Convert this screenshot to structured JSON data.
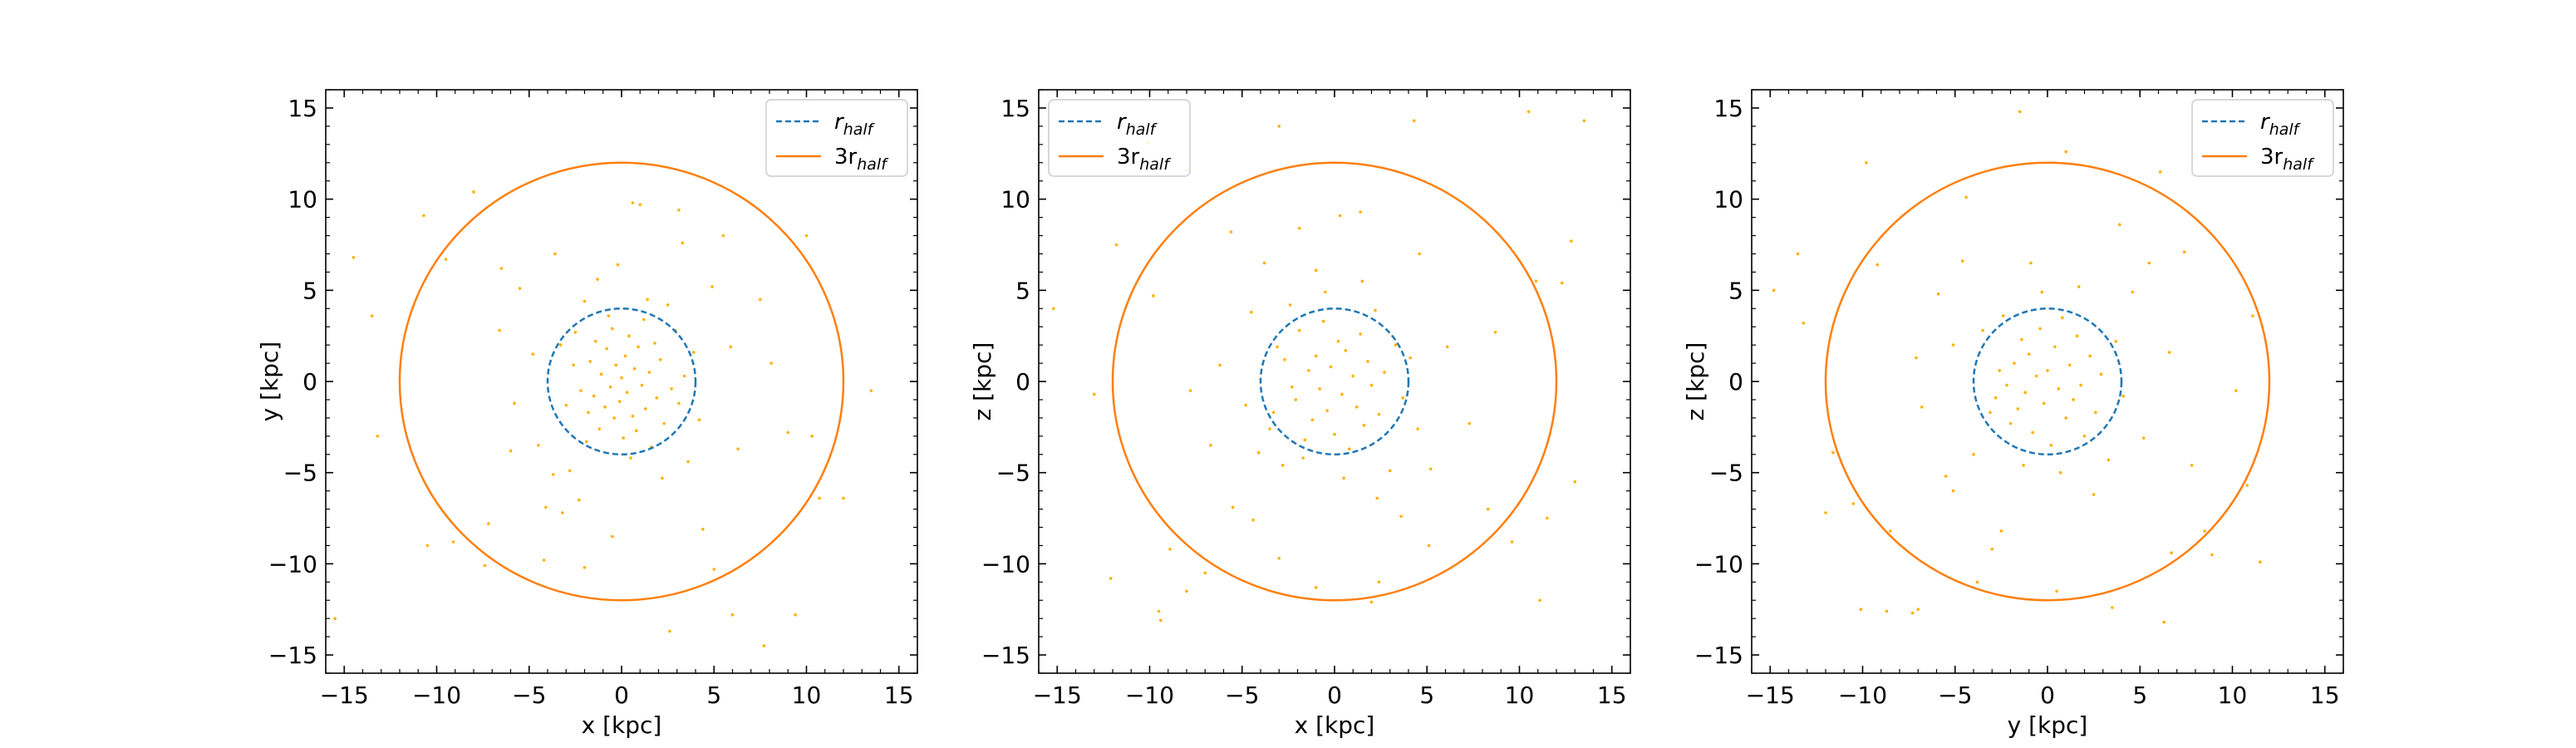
{
  "legend": {
    "r_half_label": {
      "base": "r",
      "sub": "half"
    },
    "three_r_half_label": {
      "base": "3r",
      "sub": "half"
    }
  },
  "colors": {
    "r_half": "#1f77b4",
    "three_r_half": "#ff7f0e",
    "points": "#ffb000"
  },
  "chart_data": [
    {
      "type": "scatter",
      "xlabel": "x [kpc]",
      "ylabel": "y [kpc]",
      "xlim": [
        -16,
        16
      ],
      "ylim": [
        -16,
        16
      ],
      "xticks": [
        -15,
        -10,
        -5,
        0,
        5,
        10,
        15
      ],
      "yticks": [
        -15,
        -10,
        -5,
        0,
        5,
        10,
        15
      ],
      "legend_loc": "top-right",
      "circles": [
        {
          "name_key": "r_half",
          "radius": 4.0,
          "style": "dashed"
        },
        {
          "name_key": "three_r_half",
          "radius": 12.0,
          "style": "solid"
        }
      ],
      "points": [
        [
          -14.5,
          6.8
        ],
        [
          -13.5,
          3.6
        ],
        [
          -13.2,
          -3.0
        ],
        [
          -10.7,
          9.1
        ],
        [
          -9.5,
          6.7
        ],
        [
          -9.1,
          -8.8
        ],
        [
          -8.0,
          10.4
        ],
        [
          -7.2,
          -7.8
        ],
        [
          -6.5,
          6.2
        ],
        [
          -6.0,
          -3.8
        ],
        [
          -5.5,
          5.1
        ],
        [
          -4.8,
          1.5
        ],
        [
          -4.5,
          -3.5
        ],
        [
          -3.7,
          -5.1
        ],
        [
          -3.6,
          7.0
        ],
        [
          -3.2,
          -7.2
        ],
        [
          -2.8,
          -4.9
        ],
        [
          -2.5,
          2.7
        ],
        [
          -2.3,
          -6.5
        ],
        [
          -2.0,
          4.4
        ],
        [
          -1.8,
          -1.7
        ],
        [
          -1.7,
          1.1
        ],
        [
          -1.5,
          -0.8
        ],
        [
          -1.4,
          2.2
        ],
        [
          -1.2,
          -2.6
        ],
        [
          -1.1,
          0.4
        ],
        [
          -0.9,
          -1.4
        ],
        [
          -0.8,
          1.8
        ],
        [
          -0.6,
          -0.3
        ],
        [
          -0.5,
          2.9
        ],
        [
          -0.4,
          -2.0
        ],
        [
          -0.3,
          0.9
        ],
        [
          -0.1,
          -1.1
        ],
        [
          0.0,
          0.2
        ],
        [
          0.1,
          -3.1
        ],
        [
          0.2,
          1.4
        ],
        [
          0.3,
          -0.6
        ],
        [
          0.4,
          2.5
        ],
        [
          0.6,
          -1.9
        ],
        [
          0.7,
          0.7
        ],
        [
          0.8,
          -2.7
        ],
        [
          0.9,
          1.9
        ],
        [
          1.1,
          -0.2
        ],
        [
          1.2,
          3.4
        ],
        [
          1.3,
          -1.5
        ],
        [
          1.5,
          0.5
        ],
        [
          1.6,
          -3.6
        ],
        [
          1.8,
          2.1
        ],
        [
          1.9,
          -0.9
        ],
        [
          2.1,
          1.2
        ],
        [
          2.3,
          -2.3
        ],
        [
          2.5,
          4.2
        ],
        [
          2.7,
          -0.4
        ],
        [
          2.9,
          2.8
        ],
        [
          3.1,
          -1.2
        ],
        [
          3.4,
          0.3
        ],
        [
          3.6,
          -4.4
        ],
        [
          3.9,
          1.6
        ],
        [
          4.2,
          -2.1
        ],
        [
          -2.2,
          -0.5
        ],
        [
          -2.6,
          0.9
        ],
        [
          -3.0,
          -1.3
        ],
        [
          -3.3,
          2.0
        ],
        [
          -1.9,
          -3.3
        ],
        [
          -0.7,
          3.6
        ],
        [
          0.5,
          -4.2
        ],
        [
          1.4,
          4.5
        ],
        [
          2.2,
          -5.3
        ],
        [
          -1.3,
          5.6
        ],
        [
          0.6,
          9.8
        ],
        [
          1.0,
          9.7
        ],
        [
          3.1,
          9.4
        ],
        [
          5.5,
          8.0
        ],
        [
          7.5,
          4.5
        ],
        [
          8.1,
          1.0
        ],
        [
          9.0,
          -2.8
        ],
        [
          10.3,
          -3.0
        ],
        [
          10.7,
          -6.4
        ],
        [
          12.0,
          -6.4
        ],
        [
          13.5,
          -0.5
        ],
        [
          10.0,
          8.0
        ],
        [
          6.0,
          -12.8
        ],
        [
          7.7,
          -14.5
        ],
        [
          9.4,
          -12.8
        ],
        [
          2.6,
          -13.7
        ],
        [
          -2.0,
          -10.2
        ],
        [
          -7.4,
          -10.1
        ],
        [
          -10.5,
          -9.0
        ],
        [
          -15.5,
          -13.0
        ],
        [
          -0.5,
          -8.5
        ],
        [
          4.4,
          -8.1
        ],
        [
          -4.2,
          -9.8
        ],
        [
          5.0,
          -10.3
        ],
        [
          3.3,
          7.6
        ],
        [
          -0.2,
          6.4
        ],
        [
          -5.8,
          -1.2
        ],
        [
          5.9,
          1.9
        ],
        [
          6.3,
          -3.7
        ],
        [
          -6.6,
          2.8
        ],
        [
          4.9,
          5.2
        ],
        [
          -4.1,
          -6.9
        ]
      ]
    },
    {
      "type": "scatter",
      "xlabel": "x [kpc]",
      "ylabel": "z [kpc]",
      "xlim": [
        -16,
        16
      ],
      "ylim": [
        -16,
        16
      ],
      "xticks": [
        -15,
        -10,
        -5,
        0,
        5,
        10,
        15
      ],
      "yticks": [
        -15,
        -10,
        -5,
        0,
        5,
        10,
        15
      ],
      "legend_loc": "top-left",
      "circles": [
        {
          "name_key": "r_half",
          "radius": 4.0,
          "style": "dashed"
        },
        {
          "name_key": "three_r_half",
          "radius": 12.0,
          "style": "solid"
        }
      ],
      "points": [
        [
          -15.2,
          4.0
        ],
        [
          -13.0,
          -0.7
        ],
        [
          -12.1,
          -10.8
        ],
        [
          -9.5,
          -12.6
        ],
        [
          -9.4,
          -13.1
        ],
        [
          -8.0,
          -11.5
        ],
        [
          -7.0,
          -10.5
        ],
        [
          -8.9,
          -9.2
        ],
        [
          -7.8,
          -0.5
        ],
        [
          -6.2,
          0.9
        ],
        [
          -4.8,
          -1.3
        ],
        [
          -4.5,
          3.8
        ],
        [
          -4.1,
          -3.9
        ],
        [
          -3.8,
          6.5
        ],
        [
          -3.5,
          -2.6
        ],
        [
          -3.1,
          1.9
        ],
        [
          -2.8,
          -4.6
        ],
        [
          -2.4,
          4.2
        ],
        [
          -2.1,
          -1.0
        ],
        [
          -1.9,
          2.8
        ],
        [
          -1.6,
          -3.2
        ],
        [
          -1.4,
          0.6
        ],
        [
          -1.2,
          -2.1
        ],
        [
          -1.0,
          1.4
        ],
        [
          -0.8,
          -0.4
        ],
        [
          -0.6,
          3.3
        ],
        [
          -0.4,
          -1.6
        ],
        [
          -0.2,
          0.8
        ],
        [
          0.0,
          -2.9
        ],
        [
          0.2,
          2.2
        ],
        [
          0.4,
          -0.7
        ],
        [
          0.6,
          1.7
        ],
        [
          0.8,
          -3.7
        ],
        [
          1.0,
          0.3
        ],
        [
          1.2,
          -1.4
        ],
        [
          1.4,
          2.6
        ],
        [
          1.6,
          -2.4
        ],
        [
          1.8,
          1.1
        ],
        [
          2.0,
          -0.2
        ],
        [
          2.2,
          3.9
        ],
        [
          2.4,
          -1.8
        ],
        [
          2.7,
          0.5
        ],
        [
          3.0,
          -4.9
        ],
        [
          3.3,
          2.0
        ],
        [
          3.7,
          -0.9
        ],
        [
          4.1,
          1.3
        ],
        [
          4.5,
          -2.6
        ],
        [
          -2.3,
          -0.3
        ],
        [
          -2.7,
          1.2
        ],
        [
          -3.3,
          -1.7
        ],
        [
          -1.7,
          -4.2
        ],
        [
          -0.5,
          4.9
        ],
        [
          0.5,
          -5.3
        ],
        [
          1.5,
          5.5
        ],
        [
          2.3,
          -6.4
        ],
        [
          -1.0,
          6.1
        ],
        [
          -5.5,
          -6.9
        ],
        [
          -3.0,
          -9.7
        ],
        [
          -1.0,
          -11.3
        ],
        [
          2.0,
          -12.1
        ],
        [
          2.4,
          -11.0
        ],
        [
          5.1,
          -9.0
        ],
        [
          8.3,
          -7.0
        ],
        [
          9.6,
          -8.8
        ],
        [
          11.5,
          -7.5
        ],
        [
          11.1,
          -12.0
        ],
        [
          13.0,
          -5.5
        ],
        [
          12.3,
          5.4
        ],
        [
          10.9,
          5.5
        ],
        [
          12.8,
          7.7
        ],
        [
          13.5,
          14.3
        ],
        [
          10.5,
          14.8
        ],
        [
          4.3,
          14.3
        ],
        [
          -3.0,
          14.0
        ],
        [
          -10.1,
          13.1
        ],
        [
          -8.0,
          11.6
        ],
        [
          -11.8,
          7.5
        ],
        [
          -9.8,
          4.7
        ],
        [
          -5.6,
          8.2
        ],
        [
          4.6,
          7.0
        ],
        [
          6.1,
          1.9
        ],
        [
          7.3,
          -2.3
        ],
        [
          8.7,
          2.7
        ],
        [
          -6.7,
          -3.5
        ],
        [
          5.2,
          -4.8
        ],
        [
          -4.4,
          -7.6
        ],
        [
          3.6,
          -7.4
        ],
        [
          0.3,
          9.1
        ],
        [
          1.4,
          9.3
        ],
        [
          -1.9,
          8.4
        ]
      ]
    },
    {
      "type": "scatter",
      "xlabel": "y [kpc]",
      "ylabel": "z [kpc]",
      "xlim": [
        -16,
        16
      ],
      "ylim": [
        -16,
        16
      ],
      "xticks": [
        -15,
        -10,
        -5,
        0,
        5,
        10,
        15
      ],
      "yticks": [
        -15,
        -10,
        -5,
        0,
        5,
        10,
        15
      ],
      "legend_loc": "top-right",
      "circles": [
        {
          "name_key": "r_half",
          "radius": 4.0,
          "style": "dashed"
        },
        {
          "name_key": "three_r_half",
          "radius": 12.0,
          "style": "solid"
        }
      ],
      "points": [
        [
          -14.8,
          5.0
        ],
        [
          -13.5,
          7.0
        ],
        [
          -13.2,
          3.2
        ],
        [
          -12.0,
          -7.2
        ],
        [
          -11.6,
          -3.9
        ],
        [
          -10.5,
          -6.7
        ],
        [
          -9.8,
          12.0
        ],
        [
          -9.2,
          6.4
        ],
        [
          -8.5,
          -8.2
        ],
        [
          -10.1,
          -12.5
        ],
        [
          -8.7,
          -12.6
        ],
        [
          -7.3,
          -12.7
        ],
        [
          -7.0,
          -12.5
        ],
        [
          -6.8,
          -1.4
        ],
        [
          -5.9,
          4.8
        ],
        [
          -5.5,
          -5.2
        ],
        [
          -5.1,
          2.0
        ],
        [
          -4.4,
          10.1
        ],
        [
          -4.0,
          -4.0
        ],
        [
          -3.5,
          2.8
        ],
        [
          -3.0,
          -9.2
        ],
        [
          -2.8,
          -0.9
        ],
        [
          -2.4,
          3.6
        ],
        [
          -2.0,
          -2.3
        ],
        [
          -1.8,
          1.0
        ],
        [
          -1.6,
          -1.5
        ],
        [
          -1.4,
          2.3
        ],
        [
          -1.2,
          -0.6
        ],
        [
          -1.0,
          1.5
        ],
        [
          -0.8,
          -2.8
        ],
        [
          -0.6,
          0.3
        ],
        [
          -0.4,
          2.9
        ],
        [
          -0.2,
          -1.2
        ],
        [
          0.0,
          0.6
        ],
        [
          0.2,
          -3.5
        ],
        [
          0.4,
          1.9
        ],
        [
          0.6,
          -0.4
        ],
        [
          0.8,
          3.5
        ],
        [
          1.0,
          -2.0
        ],
        [
          1.2,
          0.9
        ],
        [
          1.4,
          -1.0
        ],
        [
          1.6,
          2.5
        ],
        [
          1.8,
          -0.2
        ],
        [
          2.0,
          -3.0
        ],
        [
          2.3,
          1.4
        ],
        [
          2.6,
          -1.7
        ],
        [
          2.9,
          0.4
        ],
        [
          3.3,
          -4.3
        ],
        [
          3.7,
          2.2
        ],
        [
          4.1,
          -0.8
        ],
        [
          -2.2,
          -0.2
        ],
        [
          -2.6,
          0.6
        ],
        [
          -3.1,
          -1.7
        ],
        [
          -1.3,
          -4.6
        ],
        [
          -0.3,
          4.9
        ],
        [
          0.7,
          -5.0
        ],
        [
          1.7,
          5.2
        ],
        [
          2.5,
          -6.2
        ],
        [
          -0.9,
          6.5
        ],
        [
          -1.5,
          14.8
        ],
        [
          1.0,
          12.6
        ],
        [
          6.1,
          11.5
        ],
        [
          5.5,
          6.5
        ],
        [
          7.4,
          7.1
        ],
        [
          11.1,
          3.6
        ],
        [
          10.2,
          -0.5
        ],
        [
          10.8,
          -5.7
        ],
        [
          8.5,
          -8.2
        ],
        [
          6.7,
          -9.4
        ],
        [
          6.3,
          -13.2
        ],
        [
          8.9,
          -9.5
        ],
        [
          11.5,
          -9.9
        ],
        [
          3.5,
          -12.4
        ],
        [
          0.5,
          -11.5
        ],
        [
          -3.8,
          -11.0
        ],
        [
          -5.1,
          -6.0
        ],
        [
          5.2,
          -3.1
        ],
        [
          6.6,
          1.6
        ],
        [
          -7.1,
          1.3
        ],
        [
          4.6,
          4.9
        ],
        [
          -4.6,
          6.6
        ],
        [
          3.9,
          8.6
        ],
        [
          -2.5,
          -8.2
        ],
        [
          7.8,
          -4.6
        ]
      ]
    }
  ]
}
